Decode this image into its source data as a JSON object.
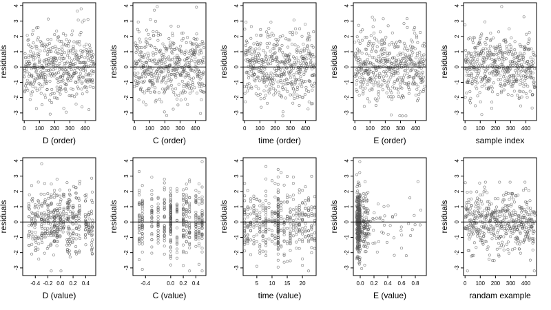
{
  "figure_title": "",
  "chart_data": [
    {
      "type": "scatter",
      "xlabel": "D (order)",
      "ylabel": "residuals",
      "xticks": [
        0,
        100,
        200,
        300,
        400
      ],
      "xtick_labels": [
        "0",
        "100",
        "200",
        "300",
        "400"
      ],
      "xlim": [
        -10,
        470
      ],
      "yticks": [
        -3,
        -2,
        -1,
        0,
        1,
        2,
        3,
        4
      ],
      "ylim": [
        -3.5,
        4.2
      ],
      "hline": 0,
      "pattern": "order",
      "n": 460,
      "seed": 11
    },
    {
      "type": "scatter",
      "xlabel": "C (order)",
      "ylabel": "residuals",
      "xticks": [
        0,
        100,
        200,
        300,
        400
      ],
      "xtick_labels": [
        "0",
        "100",
        "200",
        "300",
        "400"
      ],
      "xlim": [
        -10,
        470
      ],
      "yticks": [
        -3,
        -2,
        -1,
        0,
        1,
        2,
        3,
        4
      ],
      "ylim": [
        -3.5,
        4.2
      ],
      "hline": 0,
      "pattern": "order",
      "n": 460,
      "seed": 23
    },
    {
      "type": "scatter",
      "xlabel": "time (order)",
      "ylabel": "residuals",
      "xticks": [
        0,
        100,
        200,
        300,
        400
      ],
      "xtick_labels": [
        "0",
        "100",
        "200",
        "300",
        "400"
      ],
      "xlim": [
        -10,
        470
      ],
      "yticks": [
        -3,
        -2,
        -1,
        0,
        1,
        2,
        3,
        4
      ],
      "ylim": [
        -3.5,
        4.2
      ],
      "hline": 0,
      "pattern": "order",
      "n": 460,
      "seed": 37
    },
    {
      "type": "scatter",
      "xlabel": "E (order)",
      "ylabel": "residuals",
      "xticks": [
        0,
        100,
        200,
        300,
        400
      ],
      "xtick_labels": [
        "0",
        "100",
        "200",
        "300",
        "400"
      ],
      "xlim": [
        -10,
        470
      ],
      "yticks": [
        -3,
        -2,
        -1,
        0,
        1,
        2,
        3,
        4
      ],
      "ylim": [
        -3.5,
        4.2
      ],
      "hline": 0,
      "pattern": "order",
      "n": 460,
      "seed": 41
    },
    {
      "type": "scatter",
      "xlabel": "sample index",
      "ylabel": "residuals",
      "xticks": [
        0,
        100,
        200,
        300,
        400
      ],
      "xtick_labels": [
        "0",
        "100",
        "200",
        "300",
        "400"
      ],
      "xlim": [
        -10,
        470
      ],
      "yticks": [
        -3,
        -2,
        -1,
        0,
        1,
        2,
        3,
        4
      ],
      "ylim": [
        -3.5,
        4.2
      ],
      "hline": 0,
      "pattern": "order",
      "n": 460,
      "seed": 53
    },
    {
      "type": "scatter",
      "xlabel": "D (value)",
      "ylabel": "residuals",
      "xticks": [
        -0.4,
        -0.2,
        0.0,
        0.2,
        0.4
      ],
      "xtick_labels": [
        "-0.4",
        "-0.2",
        "0.0",
        "0.2",
        "0.4"
      ],
      "xlim": [
        -0.6,
        0.56
      ],
      "yticks": [
        -3,
        -2,
        -1,
        0,
        1,
        2,
        3,
        4
      ],
      "ylim": [
        -3.5,
        4.2
      ],
      "hline": 0,
      "pattern": "d_value",
      "n": 460,
      "seed": 61
    },
    {
      "type": "scatter",
      "xlabel": "C (value)",
      "ylabel": "residuals",
      "xticks": [
        -0.4,
        0.0,
        0.2,
        0.4
      ],
      "xtick_labels": [
        "-0.4",
        "0.0",
        "0.2",
        "0.4"
      ],
      "xlim": [
        -0.6,
        0.56
      ],
      "yticks": [
        -3,
        -2,
        -1,
        0,
        1,
        2,
        3,
        4
      ],
      "ylim": [
        -3.5,
        4.2
      ],
      "hline": 0,
      "pattern": "c_value",
      "n": 460,
      "seed": 71
    },
    {
      "type": "scatter",
      "xlabel": "time (value)",
      "ylabel": "residuals",
      "xticks": [
        5,
        10,
        15,
        20
      ],
      "xtick_labels": [
        "5",
        "10",
        "15",
        "20"
      ],
      "xlim": [
        0.5,
        24.5
      ],
      "yticks": [
        -3,
        -2,
        -1,
        0,
        1,
        2,
        3,
        4
      ],
      "ylim": [
        -3.5,
        4.2
      ],
      "hline": 0,
      "pattern": "time_value",
      "n": 460,
      "seed": 83
    },
    {
      "type": "scatter",
      "xlabel": "E (value)",
      "ylabel": "residuals",
      "xticks": [
        0.0,
        0.2,
        0.4,
        0.6,
        0.8
      ],
      "xtick_labels": [
        "0.0",
        "0.2",
        "0.4",
        "0.6",
        "0.8"
      ],
      "xlim": [
        -0.1,
        0.96
      ],
      "yticks": [
        -3,
        -2,
        -1,
        0,
        1,
        2,
        3,
        4
      ],
      "ylim": [
        -3.5,
        4.2
      ],
      "hline": 0,
      "pattern": "e_value",
      "n": 460,
      "seed": 97
    },
    {
      "type": "scatter",
      "xlabel": "randam example",
      "ylabel": "residuals",
      "xticks": [
        0,
        100,
        200,
        300,
        400
      ],
      "xtick_labels": [
        "0",
        "100",
        "200",
        "300",
        "400"
      ],
      "xlim": [
        -10,
        470
      ],
      "yticks": [
        -3,
        -2,
        -1,
        0,
        1,
        2,
        3,
        4
      ],
      "ylim": [
        -3.5,
        4.2
      ],
      "hline": 0,
      "pattern": "random",
      "n": 460,
      "seed": 101
    }
  ],
  "colors": {
    "point": "#555555",
    "axis": "#000000",
    "background": "#ffffff"
  }
}
